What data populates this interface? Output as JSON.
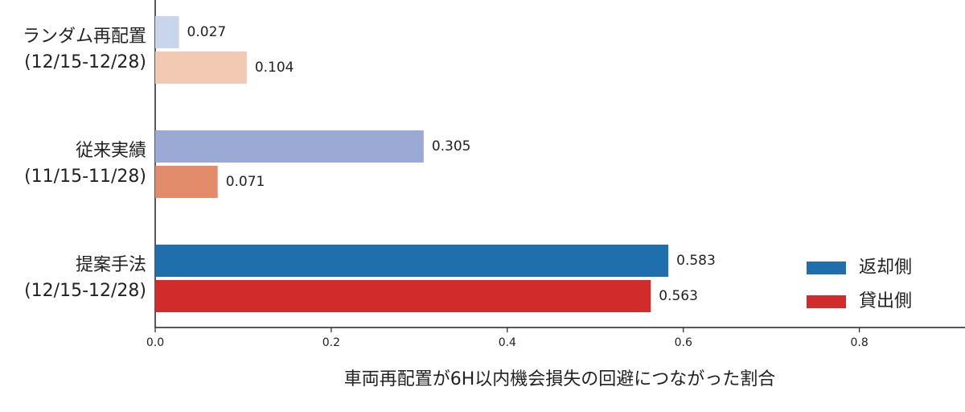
{
  "chart_data": {
    "type": "bar",
    "orientation": "horizontal",
    "xlabel": "車両再配置が6H以内機会損失の回避につながった割合",
    "categories": [
      "ランダム再配置\n(12/15-12/28)",
      "従来実績\n(11/15-11/28)",
      "提案手法\n(12/15-12/28)"
    ],
    "series": [
      {
        "name": "返却側",
        "color": "#1f6fad",
        "colors": [
          "#c8d5ea",
          "#9aaad5",
          "#1f6fad"
        ],
        "values": [
          0.027,
          0.305,
          0.583
        ]
      },
      {
        "name": "貸出側",
        "color": "#d22b2b",
        "colors": [
          "#f2cab3",
          "#e28c6c",
          "#d22b2b"
        ],
        "values": [
          0.104,
          0.071,
          0.563
        ]
      }
    ],
    "xlim": [
      0,
      0.92
    ],
    "xticks": [
      {
        "value": 0,
        "label": "0.0"
      },
      0.2,
      0.4,
      0.6,
      0.8
    ],
    "legend": "lower right"
  }
}
